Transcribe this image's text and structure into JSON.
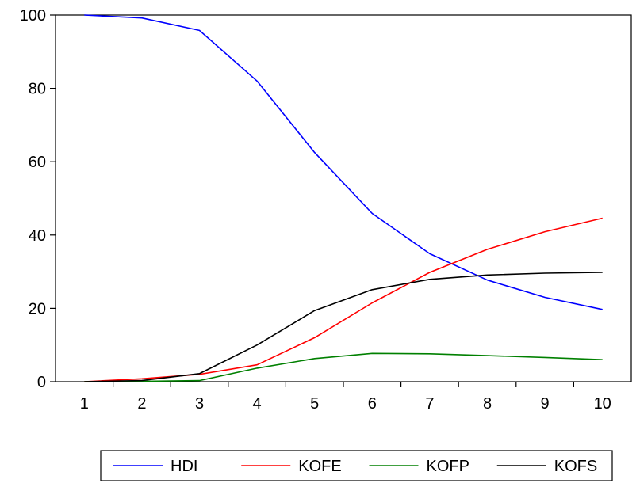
{
  "chart_data": {
    "type": "line",
    "title": "",
    "xlabel": "",
    "ylabel": "",
    "x": [
      1,
      2,
      3,
      4,
      5,
      6,
      7,
      8,
      9,
      10
    ],
    "x_tick_labels": [
      "1",
      "2",
      "3",
      "4",
      "5",
      "6",
      "7",
      "8",
      "9",
      "10"
    ],
    "ylim": [
      0,
      100
    ],
    "y_tick_labels": [
      "0",
      "20",
      "40",
      "60",
      "80",
      "100"
    ],
    "y_ticks": [
      0,
      20,
      40,
      60,
      80,
      100
    ],
    "grid": false,
    "legend_position": "bottom",
    "series": [
      {
        "name": "HDI",
        "color": "#0000ff",
        "values": [
          100,
          99.2,
          95.8,
          82,
          62.5,
          45.9,
          34.9,
          27.7,
          23.0,
          19.7
        ]
      },
      {
        "name": "KOFE",
        "color": "#ff0000",
        "values": [
          0,
          0.8,
          2.0,
          4.6,
          12.0,
          21.5,
          29.8,
          36.1,
          40.9,
          44.6
        ]
      },
      {
        "name": "KOFP",
        "color": "#008000",
        "values": [
          0,
          0.1,
          0.3,
          3.7,
          6.3,
          7.7,
          7.6,
          7.1,
          6.6,
          6.0
        ]
      },
      {
        "name": "KOFS",
        "color": "#000000",
        "values": [
          0,
          0.3,
          2.2,
          10.0,
          19.4,
          25.1,
          27.9,
          29.1,
          29.6,
          29.8
        ]
      }
    ]
  }
}
